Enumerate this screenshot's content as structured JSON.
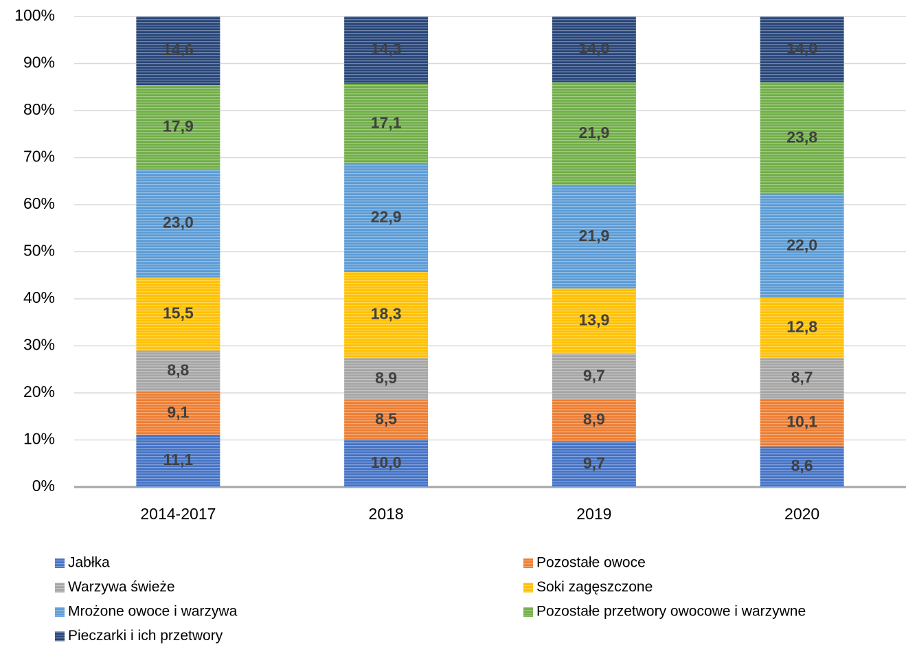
{
  "chart_data": {
    "type": "stacked_bar",
    "categories": [
      "2014-2017",
      "2018",
      "2019",
      "2020"
    ],
    "series": [
      {
        "name": "Jabłka",
        "color": "#4472c4",
        "values": [
          11.1,
          10.0,
          9.7,
          8.6
        ],
        "value_labels": [
          "11,1",
          "10,0",
          "9,7",
          "8,6"
        ]
      },
      {
        "name": "Pozostałe owoce",
        "color": "#ed7d31",
        "values": [
          9.1,
          8.5,
          8.9,
          10.1
        ],
        "value_labels": [
          "9,1",
          "8,5",
          "8,9",
          "10,1"
        ]
      },
      {
        "name": "Warzywa świeże",
        "color": "#a5a5a5",
        "values": [
          8.8,
          8.9,
          9.7,
          8.7
        ],
        "value_labels": [
          "8,8",
          "8,9",
          "9,7",
          "8,7"
        ]
      },
      {
        "name": "Soki zagęszczone",
        "color": "#ffc000",
        "values": [
          15.5,
          18.3,
          13.9,
          12.8
        ],
        "value_labels": [
          "15,5",
          "18,3",
          "13,9",
          "12,8"
        ]
      },
      {
        "name": "Mrożone owoce i warzywa",
        "color": "#5b9bd5",
        "values": [
          23.0,
          22.9,
          21.9,
          22.0
        ],
        "value_labels": [
          "23,0",
          "22,9",
          "21,9",
          "22,0"
        ]
      },
      {
        "name": "Pozostałe przetwory owocowe i warzywne",
        "color": "#70ad47",
        "values": [
          17.9,
          17.1,
          21.9,
          23.8
        ],
        "value_labels": [
          "17,9",
          "17,1",
          "21,9",
          "23,8"
        ]
      },
      {
        "name": "Pieczarki i ich przetwory",
        "color": "#264478",
        "values": [
          14.6,
          14.3,
          14.0,
          14.0
        ],
        "value_labels": [
          "14,6",
          "14,3",
          "14,0",
          "14,0"
        ]
      }
    ],
    "ylim": [
      0,
      100
    ],
    "yticks": [
      {
        "value": 0,
        "label": "0%"
      },
      {
        "value": 10,
        "label": "10%"
      },
      {
        "value": 20,
        "label": "20%"
      },
      {
        "value": 30,
        "label": "30%"
      },
      {
        "value": 40,
        "label": "40%"
      },
      {
        "value": 50,
        "label": "50%"
      },
      {
        "value": 60,
        "label": "60%"
      },
      {
        "value": 70,
        "label": "70%"
      },
      {
        "value": 80,
        "label": "80%"
      },
      {
        "value": 90,
        "label": "90%"
      },
      {
        "value": 100,
        "label": "100%"
      }
    ],
    "grid": true,
    "legend": "bottom"
  }
}
